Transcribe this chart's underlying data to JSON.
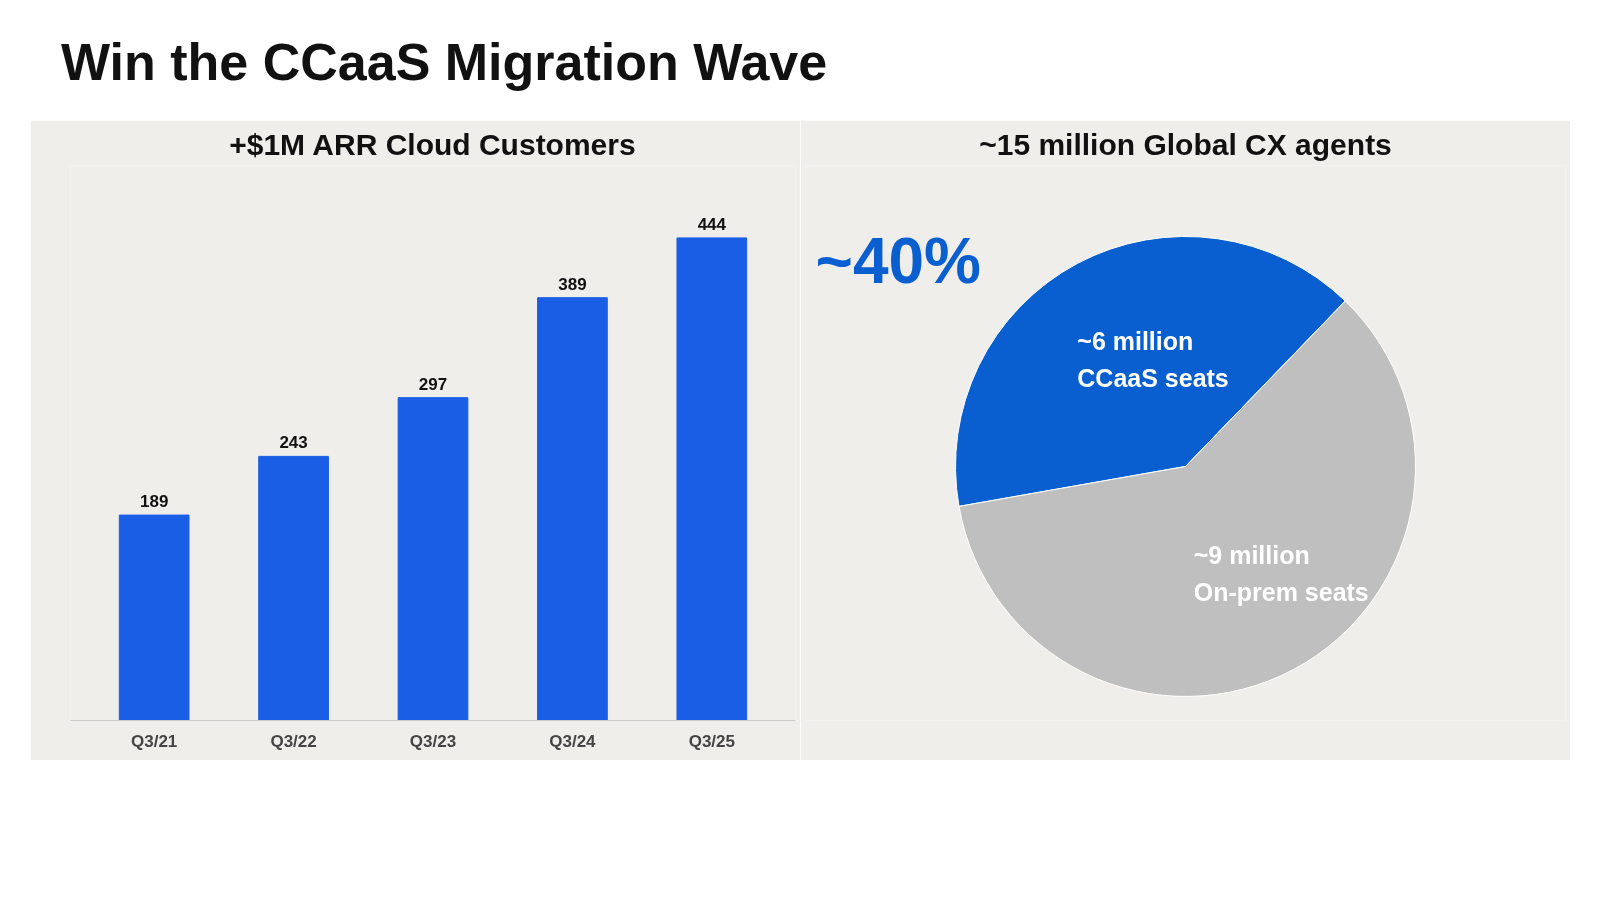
{
  "chart_data": [
    {
      "type": "bar",
      "title": "Win the CCaaS Migration Wave",
      "subtitle": "+$1M ARR Cloud Customers",
      "categories": [
        "Q3/21",
        "Q3/22",
        "Q3/23",
        "Q3/24",
        "Q3/25"
      ],
      "values": [
        189,
        243,
        297,
        389,
        444
      ],
      "color": "#1b5ee6",
      "data_labels": true,
      "grid": false,
      "tick_labels": "x"
    },
    {
      "type": "pie",
      "title": "~15 million Global CX agents",
      "categories": [
        "~6 million\nCCaaS seats",
        "~9 million\nOn-prem seats"
      ],
      "values": [
        6,
        9
      ],
      "colors": [
        "#0a5fd0",
        "#bfbfbf"
      ],
      "annotations": [
        "~40%"
      ]
    }
  ]
}
